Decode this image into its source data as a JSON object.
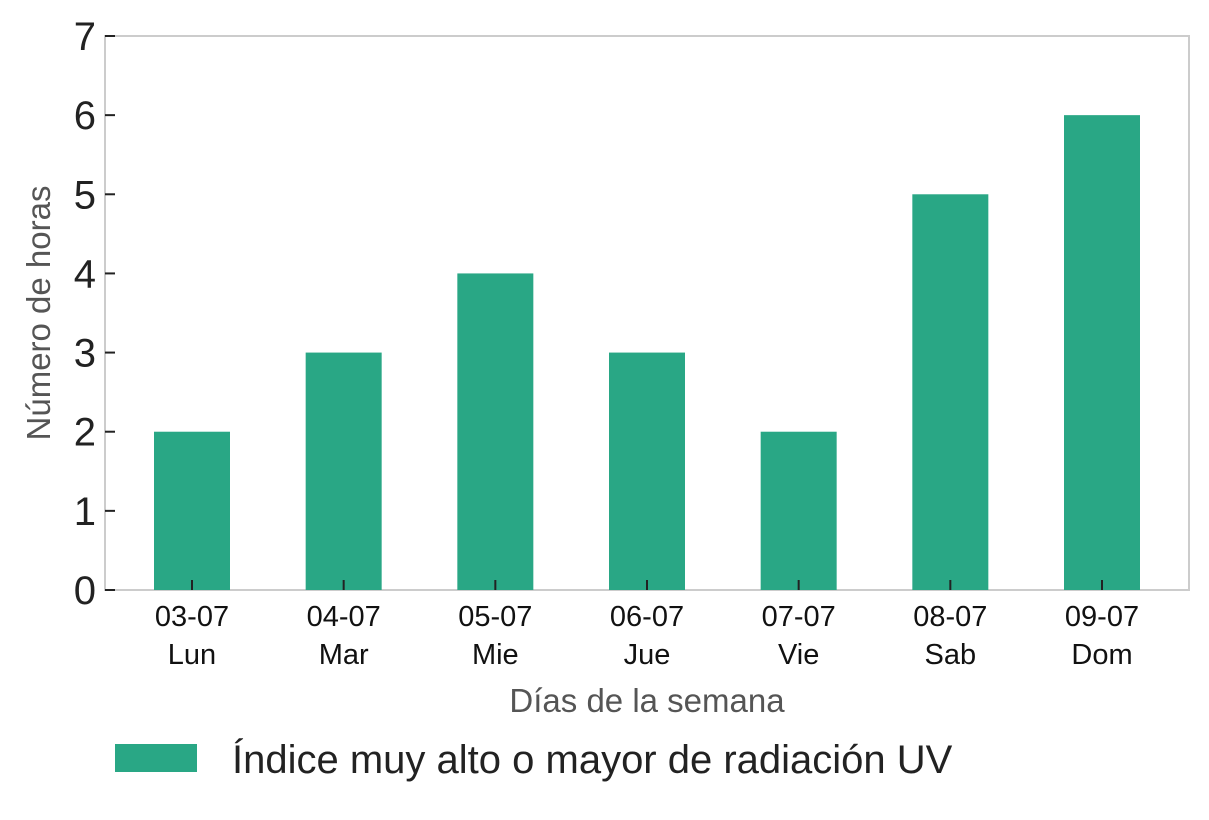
{
  "chart_data": {
    "type": "bar",
    "categories": [
      {
        "date": "03-07",
        "day": "Lun"
      },
      {
        "date": "04-07",
        "day": "Mar"
      },
      {
        "date": "05-07",
        "day": "Mie"
      },
      {
        "date": "06-07",
        "day": "Jue"
      },
      {
        "date": "07-07",
        "day": "Vie"
      },
      {
        "date": "08-07",
        "day": "Sab"
      },
      {
        "date": "09-07",
        "day": "Dom"
      }
    ],
    "series": [
      {
        "name": "Índice muy alto o mayor de radiación UV",
        "color": "#29a785",
        "values": [
          2,
          3,
          4,
          3,
          2,
          5,
          6
        ]
      }
    ],
    "xlabel": "Días de la semana",
    "ylabel": "Número de horas",
    "ylim": [
      0,
      7
    ],
    "yticks": [
      0,
      1,
      2,
      3,
      4,
      5,
      6,
      7
    ],
    "grid": false,
    "legend_position": "bottom-left"
  }
}
